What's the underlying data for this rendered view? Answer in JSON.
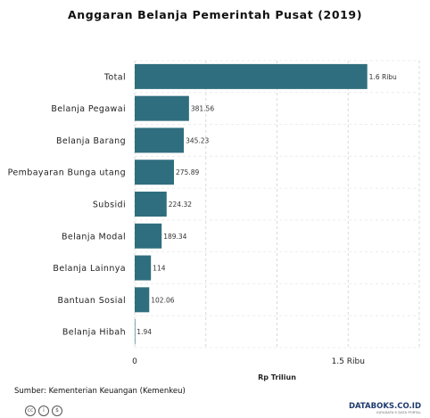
{
  "chart_data": {
    "type": "bar",
    "orientation": "horizontal",
    "title": "Anggaran Belanja Pemerintah Pusat (2019)",
    "xlabel": "Rp Triliun",
    "ylabel": "",
    "categories": [
      "Total",
      "Belanja Pegawai",
      "Belanja Barang",
      "Pembayaran Bunga utang",
      "Subsidi",
      "Belanja Modal",
      "Belanja Lainnya",
      "Bantuan Sosial",
      "Belanja Hibah"
    ],
    "values": [
      1634.34,
      381.56,
      345.23,
      275.89,
      224.32,
      189.34,
      114,
      102.06,
      1.94
    ],
    "value_labels": [
      "1.6 Ribu",
      "381.56",
      "345.23",
      "275.89",
      "224.32",
      "189.34",
      "114",
      "102.06",
      "1.94"
    ],
    "xlim": [
      0,
      2000
    ],
    "xticks": [
      0,
      1500
    ],
    "xtick_labels": [
      "0",
      "1.5 Ribu"
    ],
    "grid": true,
    "bar_color": "#2f6e7e"
  },
  "source": "Sumber: Kementerian Keuangan (Kemenkeu)",
  "brand": {
    "logo": "DATABOKS.CO.ID",
    "tagline": "KATADATA'S DATA PORTAL"
  },
  "license_icons": [
    "cc-icon",
    "by-icon",
    "nc-icon"
  ]
}
